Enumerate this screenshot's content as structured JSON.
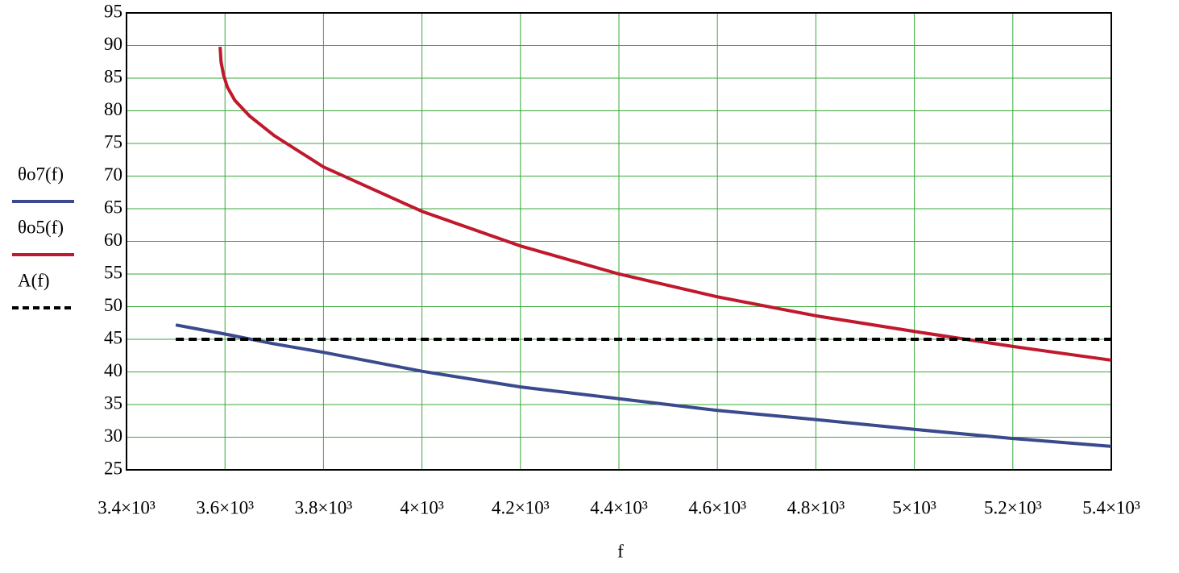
{
  "chart_data": {
    "type": "line",
    "x_label": "f",
    "xlim": [
      3400,
      5400
    ],
    "xticks": [
      {
        "value": 3400,
        "label": "3.4×10³"
      },
      {
        "value": 3600,
        "label": "3.6×10³"
      },
      {
        "value": 3800,
        "label": "3.8×10³"
      },
      {
        "value": 4000,
        "label": "4×10³"
      },
      {
        "value": 4200,
        "label": "4.2×10³"
      },
      {
        "value": 4400,
        "label": "4.4×10³"
      },
      {
        "value": 4600,
        "label": "4.6×10³"
      },
      {
        "value": 4800,
        "label": "4.8×10³"
      },
      {
        "value": 5000,
        "label": "5×10³"
      },
      {
        "value": 5200,
        "label": "5.2×10³"
      },
      {
        "value": 5400,
        "label": "5.4×10³"
      }
    ],
    "ylim": [
      25,
      95
    ],
    "yticks": [
      25,
      30,
      35,
      40,
      45,
      50,
      55,
      60,
      65,
      70,
      75,
      80,
      85,
      90,
      95
    ],
    "grid": true,
    "grid_color": "#3aa83a",
    "series": [
      {
        "name": "θo7(f)",
        "color": "#3a4a8c",
        "style": "solid",
        "x": [
          3500,
          3600,
          3700,
          3800,
          4000,
          4200,
          4400,
          4600,
          4800,
          5000,
          5200,
          5400
        ],
        "values": [
          47.2,
          45.8,
          44.3,
          43.0,
          40.1,
          37.7,
          35.9,
          34.1,
          32.7,
          31.2,
          29.8,
          28.6
        ]
      },
      {
        "name": "θo5(f)",
        "color": "#c0182c",
        "style": "solid",
        "x": [
          3590,
          3592,
          3597,
          3605,
          3620,
          3650,
          3700,
          3800,
          4000,
          4200,
          4400,
          4600,
          4800,
          5000,
          5200,
          5400
        ],
        "values": [
          89.8,
          87.5,
          85.5,
          83.6,
          81.6,
          79.2,
          76.2,
          71.4,
          64.6,
          59.3,
          55.0,
          51.5,
          48.6,
          46.2,
          43.9,
          41.8
        ]
      },
      {
        "name": "A(f)",
        "color": "#000000",
        "style": "dashed",
        "x": [
          3500,
          5400
        ],
        "values": [
          45,
          45
        ]
      }
    ]
  }
}
